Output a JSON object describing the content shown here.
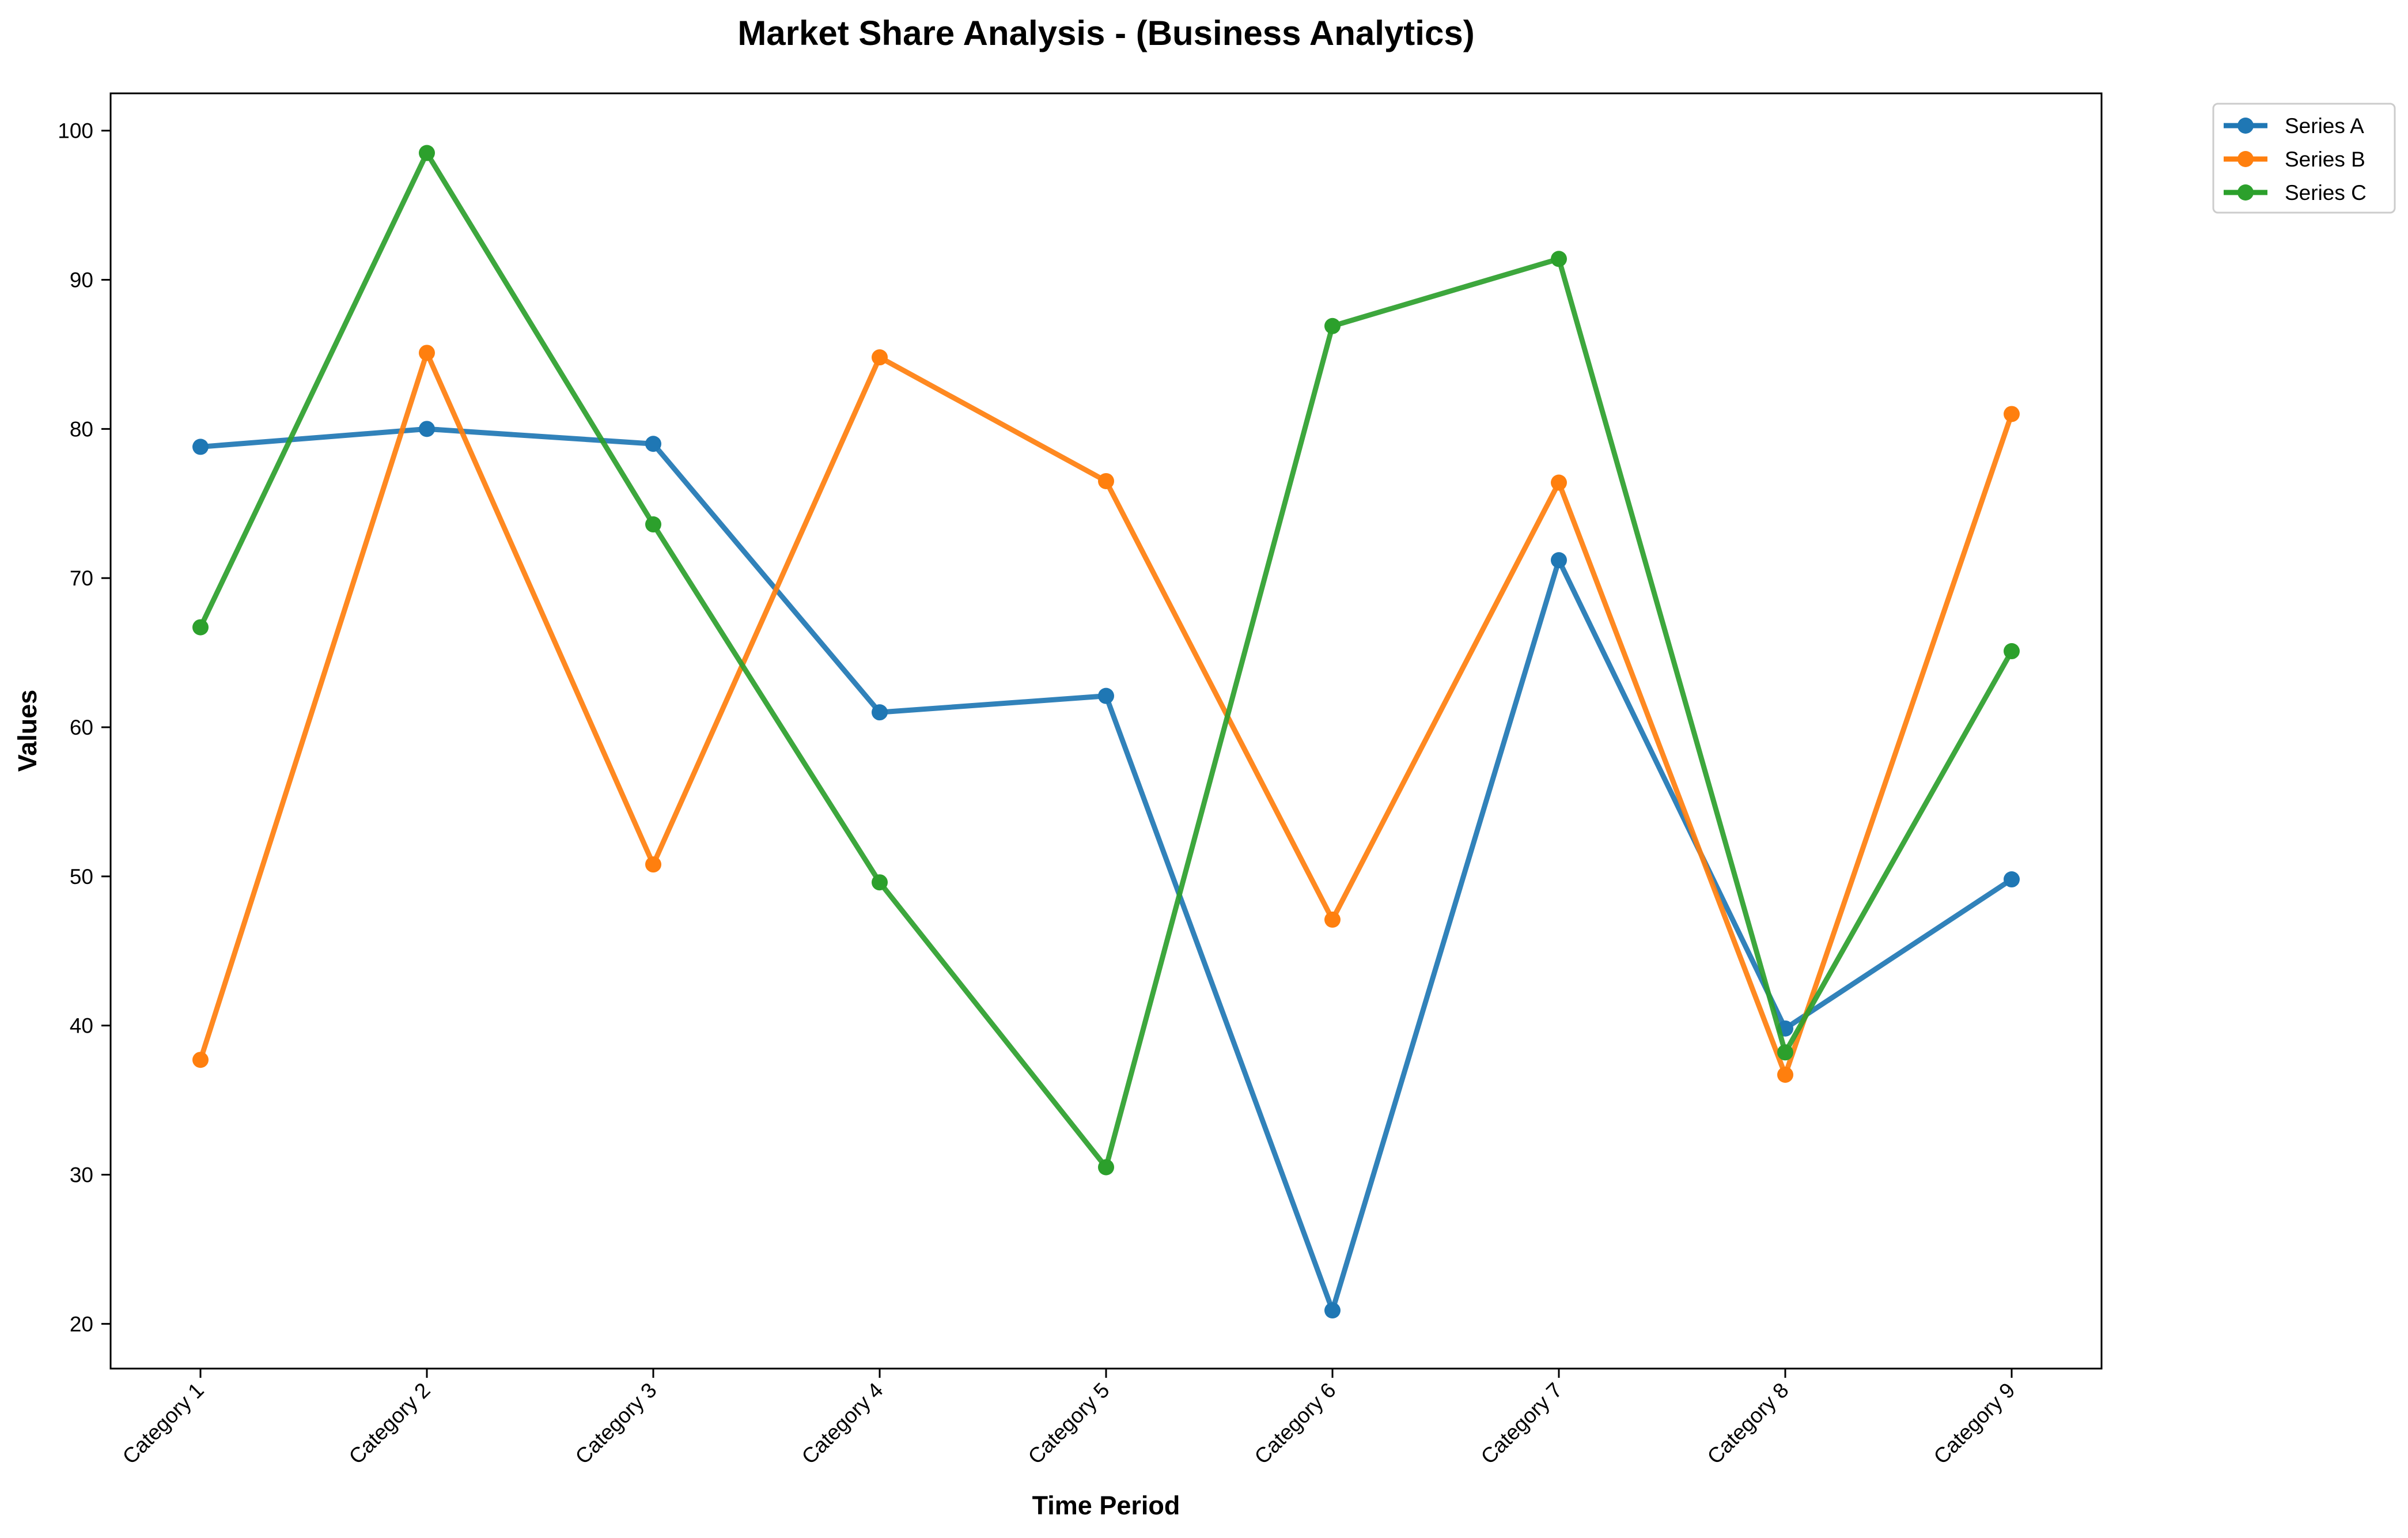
{
  "chart_data": {
    "type": "line",
    "title": "Market Share Analysis - (Business Analytics)",
    "xlabel": "Time Period",
    "ylabel": "Values",
    "categories": [
      "Category 1",
      "Category 2",
      "Category 3",
      "Category 4",
      "Category 5",
      "Category 6",
      "Category 7",
      "Category 8",
      "Category 9"
    ],
    "ylim": [
      17,
      102.5
    ],
    "yticks": [
      20,
      30,
      40,
      50,
      60,
      70,
      80,
      90,
      100
    ],
    "grid": false,
    "legend_position": "outside top-right",
    "series": [
      {
        "name": "Series A",
        "color": "#1f77b4",
        "values": [
          78.8,
          80.0,
          79.0,
          61.0,
          62.1,
          20.9,
          71.2,
          39.8,
          49.8
        ]
      },
      {
        "name": "Series B",
        "color": "#ff7f0e",
        "values": [
          37.7,
          85.1,
          50.8,
          84.8,
          76.5,
          47.1,
          76.4,
          36.7,
          81.0
        ]
      },
      {
        "name": "Series C",
        "color": "#2ca02c",
        "values": [
          66.7,
          98.5,
          73.6,
          49.6,
          30.5,
          86.9,
          91.4,
          38.2,
          65.1
        ]
      }
    ]
  }
}
